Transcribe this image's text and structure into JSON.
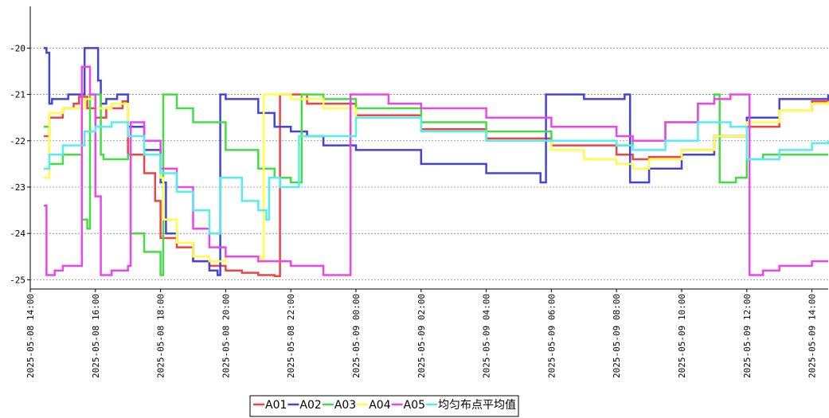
{
  "chart_data": {
    "type": "line",
    "title": "",
    "xlabel": "",
    "ylabel": "",
    "grid": "horizontal dashed",
    "legend_position": "bottom-center",
    "xlim": [
      "2025-05-08 14:00",
      "2025-05-09 14:30"
    ],
    "ylim": [
      -25.2,
      -19.1
    ],
    "y_ticks": [
      -20,
      -21,
      -22,
      -23,
      -24,
      -25
    ],
    "y_tick_labels": [
      "-20",
      "-21",
      "-22",
      "-23",
      "-24",
      "-25"
    ],
    "x_ticks": [
      "2025-05-08 14:00",
      "2025-05-08 16:00",
      "2025-05-08 18:00",
      "2025-05-08 20:00",
      "2025-05-08 22:00",
      "2025-05-09 00:00",
      "2025-05-09 02:00",
      "2025-05-09 04:00",
      "2025-05-09 06:00",
      "2025-05-09 08:00",
      "2025-05-09 10:00",
      "2025-05-09 12:00",
      "2025-05-09 14:00"
    ],
    "x_tick_labels": [
      "2025-05-08 14:00",
      "2025-05-08 16:00",
      "2025-05-08 18:00",
      "2025-05-08 20:00",
      "2025-05-08 22:00",
      "2025-05-09 00:00",
      "2025-05-09 02:00",
      "2025-05-09 04:00",
      "2025-05-09 06:00",
      "2025-05-09 08:00",
      "2025-05-09 10:00",
      "2025-05-09 12:00",
      "2025-05-09 14:00"
    ],
    "series": [
      {
        "name": "A01",
        "color": "#ee4444",
        "width": 2.5,
        "points": [
          [
            "2025-05-08 14:25",
            -21.9
          ],
          [
            "2025-05-08 14:35",
            -21.5
          ],
          [
            "2025-05-08 15:00",
            -21.3
          ],
          [
            "2025-05-08 15:20",
            -21.2
          ],
          [
            "2025-05-08 15:30",
            -21.05
          ],
          [
            "2025-05-08 15:45",
            -21.3
          ],
          [
            "2025-05-08 16:00",
            -21.5
          ],
          [
            "2025-05-08 16:20",
            -21.3
          ],
          [
            "2025-05-08 16:50",
            -21.15
          ],
          [
            "2025-05-08 17:00",
            -22.3
          ],
          [
            "2025-05-08 17:30",
            -22.7
          ],
          [
            "2025-05-08 17:50",
            -23.3
          ],
          [
            "2025-05-08 18:00",
            -24.1
          ],
          [
            "2025-05-08 18:30",
            -24.3
          ],
          [
            "2025-05-08 19:00",
            -24.6
          ],
          [
            "2025-05-08 19:30",
            -24.7
          ],
          [
            "2025-05-08 20:00",
            -24.8
          ],
          [
            "2025-05-08 20:30",
            -24.85
          ],
          [
            "2025-05-08 21:00",
            -24.9
          ],
          [
            "2025-05-08 21:30",
            -24.92
          ],
          [
            "2025-05-08 21:40",
            -21.0
          ],
          [
            "2025-05-08 22:00",
            -21.0
          ],
          [
            "2025-05-08 22:30",
            -21.2
          ],
          [
            "2025-05-09 00:00",
            -21.45
          ],
          [
            "2025-05-09 02:00",
            -21.75
          ],
          [
            "2025-05-09 04:00",
            -21.95
          ],
          [
            "2025-05-09 06:00",
            -22.1
          ],
          [
            "2025-05-09 08:00",
            -22.3
          ],
          [
            "2025-05-09 08:30",
            -22.4
          ],
          [
            "2025-05-09 09:00",
            -22.35
          ],
          [
            "2025-05-09 10:00",
            -22.2
          ],
          [
            "2025-05-09 11:00",
            -21.9
          ],
          [
            "2025-05-09 12:00",
            -21.7
          ],
          [
            "2025-05-09 13:00",
            -21.35
          ],
          [
            "2025-05-09 14:00",
            -21.15
          ],
          [
            "2025-05-09 14:30",
            -21.1
          ]
        ]
      },
      {
        "name": "A02",
        "color": "#4444dd",
        "width": 2.5,
        "points": [
          [
            "2025-05-08 14:25",
            -20.0
          ],
          [
            "2025-05-08 14:30",
            -20.1
          ],
          [
            "2025-05-08 14:35",
            -21.2
          ],
          [
            "2025-05-08 14:40",
            -21.1
          ],
          [
            "2025-05-08 15:00",
            -21.1
          ],
          [
            "2025-05-08 15:10",
            -21.0
          ],
          [
            "2025-05-08 15:35",
            -21.0
          ],
          [
            "2025-05-08 15:40",
            -20.0
          ],
          [
            "2025-05-08 15:55",
            -20.0
          ],
          [
            "2025-05-08 16:05",
            -20.7
          ],
          [
            "2025-05-08 16:10",
            -21.2
          ],
          [
            "2025-05-08 16:20",
            -21.1
          ],
          [
            "2025-05-08 16:40",
            -21.0
          ],
          [
            "2025-05-08 16:55",
            -21.0
          ],
          [
            "2025-05-08 17:00",
            -21.7
          ],
          [
            "2025-05-08 17:30",
            -22.2
          ],
          [
            "2025-05-08 18:00",
            -22.9
          ],
          [
            "2025-05-08 18:10",
            -24.0
          ],
          [
            "2025-05-08 18:30",
            -24.2
          ],
          [
            "2025-05-08 19:00",
            -24.6
          ],
          [
            "2025-05-08 19:30",
            -24.8
          ],
          [
            "2025-05-08 19:45",
            -24.9
          ],
          [
            "2025-05-08 19:50",
            -21.0
          ],
          [
            "2025-05-08 20:00",
            -21.1
          ],
          [
            "2025-05-08 21:00",
            -21.4
          ],
          [
            "2025-05-08 21:30",
            -21.7
          ],
          [
            "2025-05-08 22:00",
            -21.8
          ],
          [
            "2025-05-08 22:30",
            -21.9
          ],
          [
            "2025-05-08 23:00",
            -22.1
          ],
          [
            "2025-05-09 00:00",
            -22.2
          ],
          [
            "2025-05-09 02:00",
            -22.5
          ],
          [
            "2025-05-09 04:00",
            -22.7
          ],
          [
            "2025-05-09 05:40",
            -22.9
          ],
          [
            "2025-05-09 05:50",
            -21.0
          ],
          [
            "2025-05-09 06:30",
            -21.0
          ],
          [
            "2025-05-09 07:00",
            -21.1
          ],
          [
            "2025-05-09 08:00",
            -21.1
          ],
          [
            "2025-05-09 08:15",
            -21.0
          ],
          [
            "2025-05-09 08:25",
            -22.9
          ],
          [
            "2025-05-09 09:00",
            -22.6
          ],
          [
            "2025-05-09 10:00",
            -22.3
          ],
          [
            "2025-05-09 11:00",
            -21.9
          ],
          [
            "2025-05-09 12:00",
            -21.5
          ],
          [
            "2025-05-09 13:00",
            -21.1
          ],
          [
            "2025-05-09 14:30",
            -21.0
          ]
        ]
      },
      {
        "name": "A03",
        "color": "#44dd44",
        "width": 2.5,
        "points": [
          [
            "2025-05-08 14:25",
            -21.7
          ],
          [
            "2025-05-08 14:35",
            -22.5
          ],
          [
            "2025-05-08 15:00",
            -22.3
          ],
          [
            "2025-05-08 15:30",
            -22.3
          ],
          [
            "2025-05-08 15:35",
            -23.7
          ],
          [
            "2025-05-08 15:45",
            -23.9
          ],
          [
            "2025-05-08 15:50",
            -21.0
          ],
          [
            "2025-05-08 16:10",
            -22.3
          ],
          [
            "2025-05-08 16:15",
            -22.4
          ],
          [
            "2025-05-08 17:00",
            -22.3
          ],
          [
            "2025-05-08 17:05",
            -24.0
          ],
          [
            "2025-05-08 17:30",
            -24.4
          ],
          [
            "2025-05-08 18:00",
            -24.9
          ],
          [
            "2025-05-08 18:05",
            -21.0
          ],
          [
            "2025-05-08 18:30",
            -21.3
          ],
          [
            "2025-05-08 19:00",
            -21.6
          ],
          [
            "2025-05-08 20:00",
            -22.2
          ],
          [
            "2025-05-08 21:00",
            -22.6
          ],
          [
            "2025-05-08 21:30",
            -22.8
          ],
          [
            "2025-05-08 22:00",
            -22.9
          ],
          [
            "2025-05-08 22:15",
            -22.9
          ],
          [
            "2025-05-08 22:20",
            -21.0
          ],
          [
            "2025-05-08 23:00",
            -21.1
          ],
          [
            "2025-05-09 00:00",
            -21.3
          ],
          [
            "2025-05-09 02:00",
            -21.6
          ],
          [
            "2025-05-09 04:00",
            -21.8
          ],
          [
            "2025-05-09 06:00",
            -22.0
          ],
          [
            "2025-05-09 08:00",
            -22.1
          ],
          [
            "2025-05-09 08:30",
            -22.0
          ],
          [
            "2025-05-09 09:30",
            -21.6
          ],
          [
            "2025-05-09 10:30",
            -21.2
          ],
          [
            "2025-05-09 11:00",
            -21.0
          ],
          [
            "2025-05-09 11:10",
            -22.9
          ],
          [
            "2025-05-09 11:40",
            -22.8
          ],
          [
            "2025-05-09 12:00",
            -22.4
          ],
          [
            "2025-05-09 12:30",
            -22.3
          ],
          [
            "2025-05-09 14:30",
            -22.3
          ]
        ]
      },
      {
        "name": "A04",
        "color": "#ffff44",
        "width": 2.5,
        "points": [
          [
            "2025-05-08 14:25",
            -22.8
          ],
          [
            "2025-05-08 14:35",
            -21.4
          ],
          [
            "2025-05-08 15:00",
            -21.3
          ],
          [
            "2025-05-08 15:40",
            -21.1
          ],
          [
            "2025-05-08 16:00",
            -21.3
          ],
          [
            "2025-05-08 16:30",
            -21.2
          ],
          [
            "2025-05-08 17:00",
            -21.9
          ],
          [
            "2025-05-08 17:30",
            -22.3
          ],
          [
            "2025-05-08 18:00",
            -22.8
          ],
          [
            "2025-05-08 18:05",
            -23.7
          ],
          [
            "2025-05-08 18:30",
            -24.2
          ],
          [
            "2025-05-08 19:00",
            -24.5
          ],
          [
            "2025-05-08 19:30",
            -24.6
          ],
          [
            "2025-05-08 20:00",
            -24.5
          ],
          [
            "2025-05-08 20:30",
            -24.5
          ],
          [
            "2025-05-08 21:05",
            -24.6
          ],
          [
            "2025-05-08 21:10",
            -21.0
          ],
          [
            "2025-05-08 21:40",
            -21.0
          ],
          [
            "2025-05-08 22:00",
            -21.1
          ],
          [
            "2025-05-08 23:00",
            -21.3
          ],
          [
            "2025-05-09 00:00",
            -21.5
          ],
          [
            "2025-05-09 02:00",
            -21.8
          ],
          [
            "2025-05-09 04:00",
            -22.0
          ],
          [
            "2025-05-09 06:00",
            -22.2
          ],
          [
            "2025-05-09 07:00",
            -22.4
          ],
          [
            "2025-05-09 08:00",
            -22.5
          ],
          [
            "2025-05-09 08:30",
            -22.6
          ],
          [
            "2025-05-09 09:00",
            -22.4
          ],
          [
            "2025-05-09 10:00",
            -22.2
          ],
          [
            "2025-05-09 11:00",
            -21.9
          ],
          [
            "2025-05-09 12:00",
            -21.6
          ],
          [
            "2025-05-09 13:00",
            -21.35
          ],
          [
            "2025-05-09 14:00",
            -21.2
          ],
          [
            "2025-05-09 14:30",
            -21.15
          ]
        ]
      },
      {
        "name": "A05",
        "color": "#ee44ee",
        "width": 2.5,
        "points": [
          [
            "2025-05-08 14:25",
            -23.4
          ],
          [
            "2025-05-08 14:30",
            -24.9
          ],
          [
            "2025-05-08 14:45",
            -24.8
          ],
          [
            "2025-05-08 15:00",
            -24.7
          ],
          [
            "2025-05-08 15:30",
            -24.7
          ],
          [
            "2025-05-08 15:35",
            -20.4
          ],
          [
            "2025-05-08 15:50",
            -21.0
          ],
          [
            "2025-05-08 16:00",
            -23.2
          ],
          [
            "2025-05-08 16:10",
            -24.9
          ],
          [
            "2025-05-08 16:30",
            -24.8
          ],
          [
            "2025-05-08 17:00",
            -24.7
          ],
          [
            "2025-05-08 17:05",
            -21.6
          ],
          [
            "2025-05-08 17:30",
            -22.0
          ],
          [
            "2025-05-08 18:00",
            -22.6
          ],
          [
            "2025-05-08 18:30",
            -23.0
          ],
          [
            "2025-05-08 19:00",
            -23.9
          ],
          [
            "2025-05-08 19:30",
            -24.3
          ],
          [
            "2025-05-08 20:00",
            -24.5
          ],
          [
            "2025-05-08 21:00",
            -24.6
          ],
          [
            "2025-05-08 22:00",
            -24.7
          ],
          [
            "2025-05-08 23:00",
            -24.9
          ],
          [
            "2025-05-08 23:45",
            -24.9
          ],
          [
            "2025-05-08 23:50",
            -21.0
          ],
          [
            "2025-05-09 00:30",
            -21.0
          ],
          [
            "2025-05-09 01:00",
            -21.2
          ],
          [
            "2025-05-09 02:00",
            -21.3
          ],
          [
            "2025-05-09 04:00",
            -21.5
          ],
          [
            "2025-05-09 06:00",
            -21.7
          ],
          [
            "2025-05-09 08:00",
            -21.9
          ],
          [
            "2025-05-09 08:30",
            -22.0
          ],
          [
            "2025-05-09 09:30",
            -21.6
          ],
          [
            "2025-05-09 10:30",
            -21.2
          ],
          [
            "2025-05-09 11:00",
            -21.1
          ],
          [
            "2025-05-09 11:30",
            -21.0
          ],
          [
            "2025-05-09 11:55",
            -21.0
          ],
          [
            "2025-05-09 12:05",
            -24.9
          ],
          [
            "2025-05-09 12:30",
            -24.8
          ],
          [
            "2025-05-09 13:00",
            -24.7
          ],
          [
            "2025-05-09 14:00",
            -24.6
          ],
          [
            "2025-05-09 14:30",
            -24.6
          ]
        ]
      },
      {
        "name": "均匀布点平均值",
        "color": "#55eeee",
        "width": 2.5,
        "points": [
          [
            "2025-05-08 14:25",
            -22.6
          ],
          [
            "2025-05-08 14:35",
            -22.3
          ],
          [
            "2025-05-08 15:00",
            -22.1
          ],
          [
            "2025-05-08 15:40",
            -21.8
          ],
          [
            "2025-05-08 16:00",
            -21.7
          ],
          [
            "2025-05-08 16:30",
            -21.6
          ],
          [
            "2025-05-08 17:00",
            -21.9
          ],
          [
            "2025-05-08 17:30",
            -22.3
          ],
          [
            "2025-05-08 18:00",
            -22.7
          ],
          [
            "2025-05-08 18:30",
            -23.1
          ],
          [
            "2025-05-08 19:00",
            -23.5
          ],
          [
            "2025-05-08 19:30",
            -24.0
          ],
          [
            "2025-05-08 19:50",
            -22.8
          ],
          [
            "2025-05-08 20:30",
            -23.3
          ],
          [
            "2025-05-08 21:00",
            -23.5
          ],
          [
            "2025-05-08 21:15",
            -23.7
          ],
          [
            "2025-05-08 21:20",
            -22.8
          ],
          [
            "2025-05-08 21:40",
            -23.0
          ],
          [
            "2025-05-08 22:10",
            -23.0
          ],
          [
            "2025-05-08 22:15",
            -21.9
          ],
          [
            "2025-05-09 00:00",
            -21.5
          ],
          [
            "2025-05-09 02:00",
            -21.8
          ],
          [
            "2025-05-09 04:00",
            -22.0
          ],
          [
            "2025-05-09 06:00",
            -22.0
          ],
          [
            "2025-05-09 08:00",
            -22.1
          ],
          [
            "2025-05-09 08:30",
            -22.2
          ],
          [
            "2025-05-09 09:30",
            -22.0
          ],
          [
            "2025-05-09 10:30",
            -21.6
          ],
          [
            "2025-05-09 11:30",
            -21.7
          ],
          [
            "2025-05-09 12:00",
            -22.4
          ],
          [
            "2025-05-09 13:00",
            -22.2
          ],
          [
            "2025-05-09 14:00",
            -22.05
          ],
          [
            "2025-05-09 14:30",
            -22.0
          ]
        ]
      }
    ]
  }
}
